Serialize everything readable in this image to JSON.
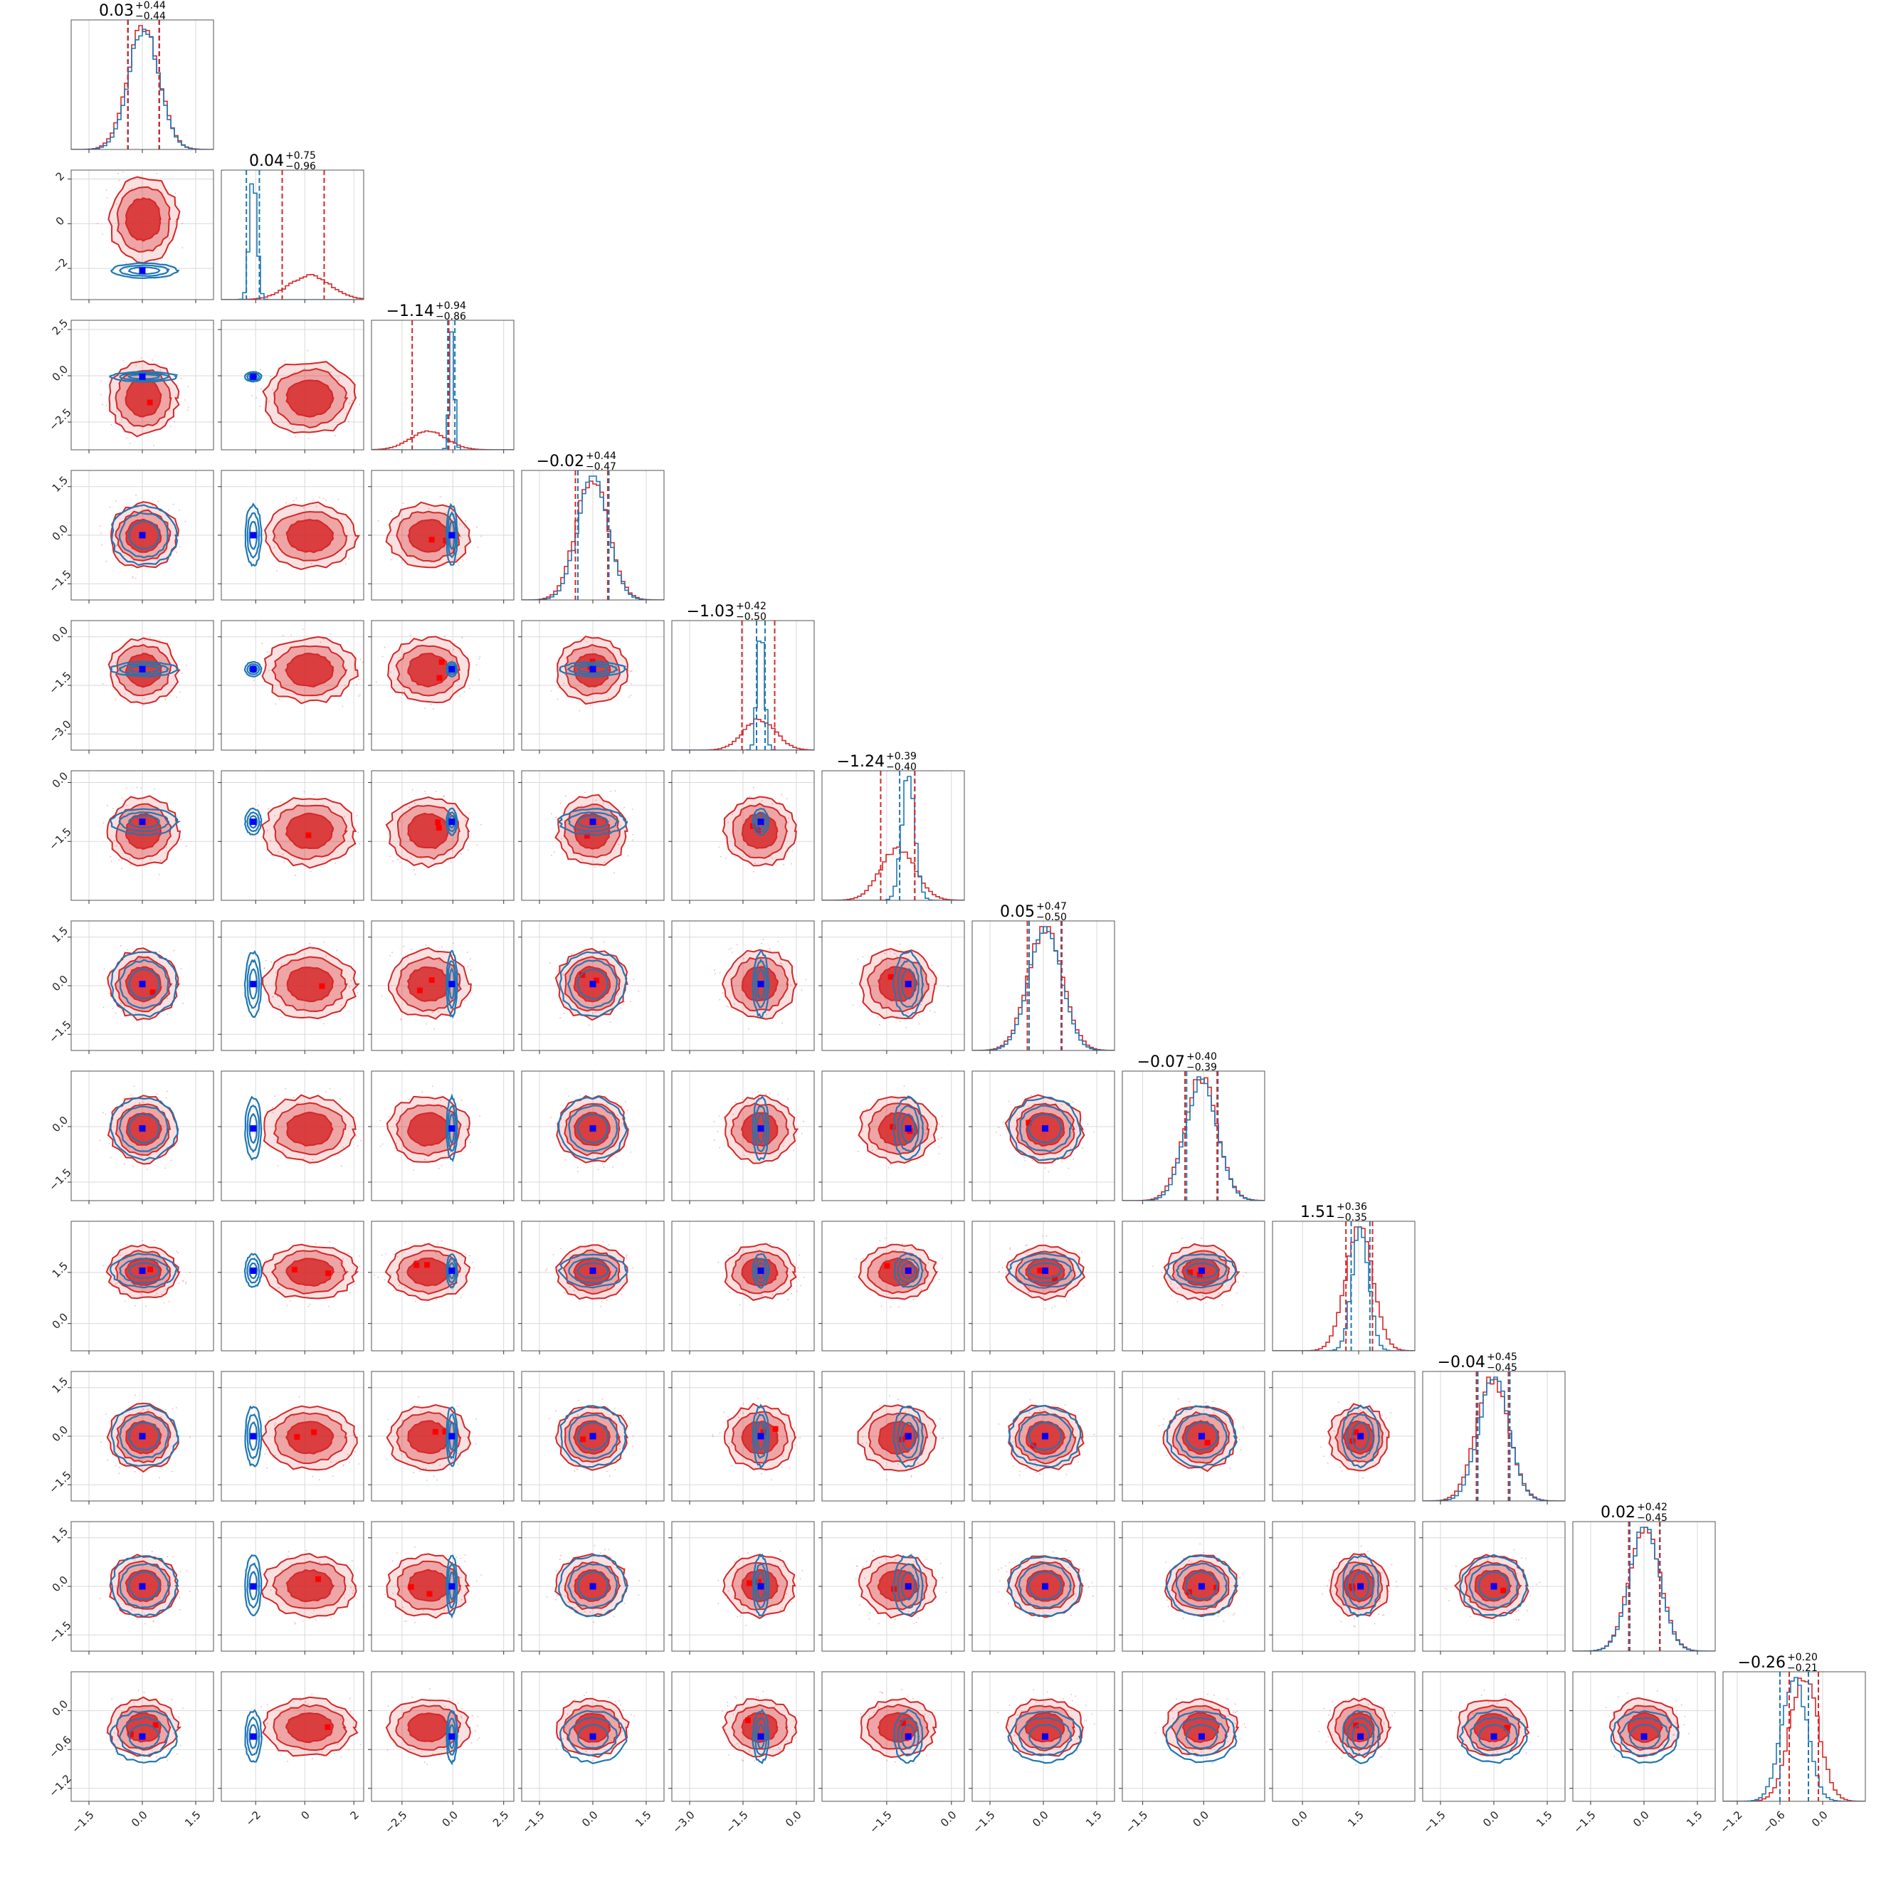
{
  "chart_data": {
    "type": "corner",
    "n_params": 12,
    "series": [
      {
        "name": "",
        "color": "#d62728",
        "kind": "filled-contours-and-histograms"
      },
      {
        "name": "",
        "color": "#1f77b4",
        "kind": "line-contours-and-histograms"
      }
    ],
    "true_marker_color": "#0000ff",
    "outlier_marker_color": "#ff0000",
    "grid": true,
    "params": [
      {
        "range": [
          -2.0,
          2.0
        ],
        "ticks": [
          -1.5,
          0.0,
          1.5
        ],
        "tick_labels": [
          "−1.5",
          "0.0",
          "1.5"
        ],
        "red_mu": 0.03,
        "red_sd": 0.44,
        "blue_mu": 0.05,
        "blue_sd": 0.42,
        "truth": 0.0,
        "q_red": [
          -0.41,
          0.47
        ],
        "q_blue": [
          -0.4,
          0.48
        ],
        "title_val": "0.03",
        "title_up": "+0.44",
        "title_dn": "−0.44"
      },
      {
        "range": [
          -3.4,
          2.4
        ],
        "ticks": [
          -2,
          0,
          2
        ],
        "tick_labels": [
          "−2",
          "0",
          "2"
        ],
        "red_mu": 0.2,
        "red_sd": 0.85,
        "blue_mu": -2.1,
        "blue_sd": 0.15,
        "truth": -2.1,
        "q_red": [
          -0.92,
          0.79
        ],
        "q_blue": [
          -2.38,
          -1.85
        ],
        "title_val": "0.04",
        "title_up": "+0.75",
        "title_dn": "−0.96"
      },
      {
        "range": [
          -4.0,
          3.0
        ],
        "ticks": [
          -2.5,
          0.0,
          2.5
        ],
        "tick_labels": [
          "−2.5",
          "0.0",
          "2.5"
        ],
        "red_mu": -1.2,
        "red_sd": 0.9,
        "blue_mu": -0.05,
        "blue_sd": 0.12,
        "truth": -0.05,
        "q_red": [
          -2.0,
          -0.2
        ],
        "q_blue": [
          -0.25,
          0.1
        ],
        "title_val": "−1.14",
        "title_up": "+0.94",
        "title_dn": "−0.86"
      },
      {
        "range": [
          -2.0,
          2.0
        ],
        "ticks": [
          -1.5,
          0.0,
          1.5
        ],
        "tick_labels": [
          "−1.5",
          "0.0",
          "1.5"
        ],
        "red_mu": -0.02,
        "red_sd": 0.45,
        "blue_mu": 0.0,
        "blue_sd": 0.42,
        "truth": 0.0,
        "q_red": [
          -0.49,
          0.42
        ],
        "q_blue": [
          -0.42,
          0.45
        ],
        "title_val": "−0.02",
        "title_up": "+0.44",
        "title_dn": "−0.47"
      },
      {
        "range": [
          -3.5,
          0.5
        ],
        "ticks": [
          -3.0,
          -1.5,
          0.0
        ],
        "tick_labels": [
          "−3.0",
          "−1.5",
          "0.0"
        ],
        "red_mu": -1.03,
        "red_sd": 0.45,
        "blue_mu": -1.0,
        "blue_sd": 0.1,
        "truth": -1.0,
        "q_red": [
          -1.53,
          -0.61
        ],
        "q_blue": [
          -1.12,
          -0.88
        ],
        "title_val": "−1.03",
        "title_up": "+0.42",
        "title_dn": "−0.50"
      },
      {
        "range": [
          -3.0,
          0.3
        ],
        "ticks": [
          -1.5,
          0.0
        ],
        "tick_labels": [
          "−1.5",
          "0.0"
        ],
        "red_mu": -1.24,
        "red_sd": 0.4,
        "blue_mu": -1.0,
        "blue_sd": 0.15,
        "truth": -1.0,
        "q_red": [
          -1.64,
          -0.85
        ],
        "q_blue": [
          -1.2,
          -0.85
        ],
        "title_val": "−1.24",
        "title_up": "+0.39",
        "title_dn": "−0.40"
      },
      {
        "range": [
          -2.0,
          2.0
        ],
        "ticks": [
          -1.5,
          0.0,
          1.5
        ],
        "tick_labels": [
          "−1.5",
          "0.0",
          "1.5"
        ],
        "red_mu": 0.05,
        "red_sd": 0.48,
        "blue_mu": 0.05,
        "blue_sd": 0.45,
        "truth": 0.05,
        "q_red": [
          -0.45,
          0.52
        ],
        "q_blue": [
          -0.4,
          0.5
        ],
        "title_val": "0.05",
        "title_up": "+0.47",
        "title_dn": "−0.50"
      },
      {
        "range": [
          -2.0,
          1.5
        ],
        "ticks": [
          -1.5,
          0.0
        ],
        "tick_labels": [
          "−1.5",
          "0.0"
        ],
        "red_mu": -0.07,
        "red_sd": 0.4,
        "blue_mu": -0.05,
        "blue_sd": 0.38,
        "truth": -0.05,
        "q_red": [
          -0.46,
          0.33
        ],
        "q_blue": [
          -0.42,
          0.35
        ],
        "title_val": "−0.07",
        "title_up": "+0.40",
        "title_dn": "−0.39"
      },
      {
        "range": [
          -0.8,
          3.0
        ],
        "ticks": [
          0.0,
          1.5
        ],
        "tick_labels": [
          "0.0",
          "1.5"
        ],
        "red_mu": 1.51,
        "red_sd": 0.36,
        "blue_mu": 1.55,
        "blue_sd": 0.22,
        "truth": 1.55,
        "q_red": [
          1.16,
          1.87
        ],
        "q_blue": [
          1.3,
          1.8
        ],
        "title_val": "1.51",
        "title_up": "+0.36",
        "title_dn": "−0.35"
      },
      {
        "range": [
          -2.0,
          2.0
        ],
        "ticks": [
          -1.5,
          0.0,
          1.5
        ],
        "tick_labels": [
          "−1.5",
          "0.0",
          "1.5"
        ],
        "red_mu": -0.04,
        "red_sd": 0.45,
        "blue_mu": 0.0,
        "blue_sd": 0.42,
        "truth": 0.0,
        "q_red": [
          -0.49,
          0.41
        ],
        "q_blue": [
          -0.45,
          0.45
        ],
        "title_val": "−0.04",
        "title_up": "+0.45",
        "title_dn": "−0.45"
      },
      {
        "range": [
          -2.0,
          2.0
        ],
        "ticks": [
          -1.5,
          0.0,
          1.5
        ],
        "tick_labels": [
          "−1.5",
          "0.0",
          "1.5"
        ],
        "red_mu": 0.02,
        "red_sd": 0.43,
        "blue_mu": 0.02,
        "blue_sd": 0.42,
        "truth": 0.0,
        "q_red": [
          -0.43,
          0.44
        ],
        "q_blue": [
          -0.4,
          0.45
        ],
        "title_val": "0.02",
        "title_up": "+0.42",
        "title_dn": "−0.45"
      },
      {
        "range": [
          -1.4,
          0.6
        ],
        "ticks": [
          -1.2,
          -0.6,
          0.0
        ],
        "tick_labels": [
          "−1.2",
          "−0.6",
          "0.0"
        ],
        "red_mu": -0.26,
        "red_sd": 0.2,
        "blue_mu": -0.4,
        "blue_sd": 0.18,
        "truth": -0.4,
        "q_red": [
          -0.47,
          -0.06
        ],
        "q_blue": [
          -0.6,
          -0.2
        ],
        "title_val": "−0.26",
        "title_up": "+0.20",
        "title_dn": "−0.21"
      }
    ]
  }
}
